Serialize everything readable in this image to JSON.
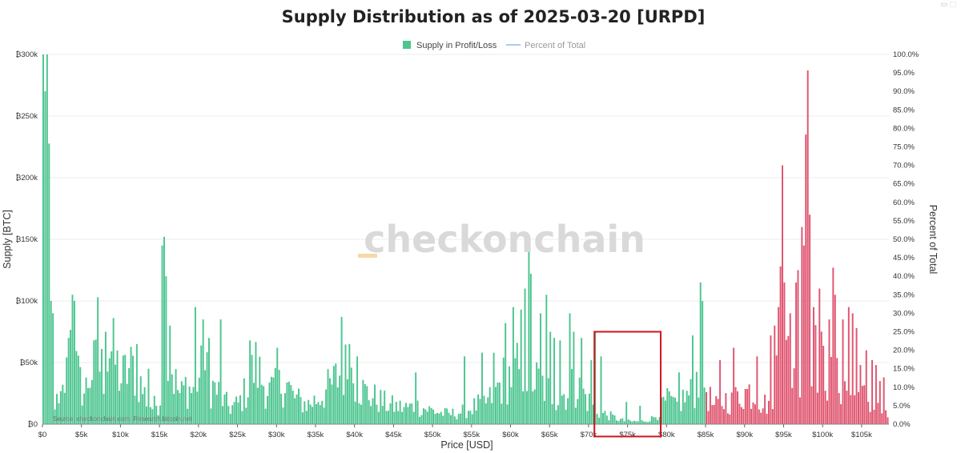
{
  "chart_data": {
    "type": "bar",
    "title": "Supply Distribution as of 2025-03-20 [URPD]",
    "xlabel": "Price [USD]",
    "ylabel": "Supply [BTC]",
    "y2label": "Percent of Total",
    "xlim": [
      0,
      108500
    ],
    "ylim": [
      0,
      300000
    ],
    "y2lim": [
      0,
      100
    ],
    "bin_width": 250,
    "x_ticks": [
      {
        "v": 0,
        "label": "$0"
      },
      {
        "v": 5000,
        "label": "$5k"
      },
      {
        "v": 10000,
        "label": "$10k"
      },
      {
        "v": 15000,
        "label": "$15k"
      },
      {
        "v": 20000,
        "label": "$20k"
      },
      {
        "v": 25000,
        "label": "$25k"
      },
      {
        "v": 30000,
        "label": "$30k"
      },
      {
        "v": 35000,
        "label": "$35k"
      },
      {
        "v": 40000,
        "label": "$40k"
      },
      {
        "v": 45000,
        "label": "$45k"
      },
      {
        "v": 50000,
        "label": "$50k"
      },
      {
        "v": 55000,
        "label": "$55k"
      },
      {
        "v": 60000,
        "label": "$60k"
      },
      {
        "v": 65000,
        "label": "$65k"
      },
      {
        "v": 70000,
        "label": "$70k"
      },
      {
        "v": 75000,
        "label": "$75k"
      },
      {
        "v": 80000,
        "label": "$80k"
      },
      {
        "v": 85000,
        "label": "$85k"
      },
      {
        "v": 90000,
        "label": "$90k"
      },
      {
        "v": 95000,
        "label": "$95k"
      },
      {
        "v": 100000,
        "label": "$100k"
      },
      {
        "v": 105000,
        "label": "$105k"
      }
    ],
    "y_ticks": [
      {
        "v": 0,
        "label": "₿0"
      },
      {
        "v": 50000,
        "label": "₿50k"
      },
      {
        "v": 100000,
        "label": "₿100k"
      },
      {
        "v": 150000,
        "label": "₿150k"
      },
      {
        "v": 200000,
        "label": "₿200k"
      },
      {
        "v": 250000,
        "label": "₿250k"
      },
      {
        "v": 300000,
        "label": "₿300k"
      }
    ],
    "y2_ticks": [
      "0.0%",
      "5.0%",
      "10.0%",
      "15.0%",
      "20.0%",
      "25.0%",
      "30.0%",
      "35.0%",
      "40.0%",
      "45.0%",
      "50.0%",
      "55.0%",
      "60.0%",
      "65.0%",
      "70.0%",
      "75.0%",
      "80.0%",
      "85.0%",
      "90.0%",
      "95.0%",
      "100.0%"
    ],
    "current_price": 84800,
    "series": [
      {
        "name": "Supply in Profit/Loss",
        "color_profit": "#4cc58f",
        "color_loss": "#e0546f"
      },
      {
        "name": "Percent of Total",
        "color": "#a9cdf0"
      }
    ],
    "profile": [
      [
        0,
        20000
      ],
      [
        300,
        300000
      ],
      [
        600,
        220000
      ],
      [
        900,
        95000
      ],
      [
        1300,
        25000
      ],
      [
        2000,
        15000
      ],
      [
        2600,
        30000
      ],
      [
        3300,
        55000
      ],
      [
        3700,
        100000
      ],
      [
        4200,
        50000
      ],
      [
        4800,
        35000
      ],
      [
        5300,
        28000
      ],
      [
        6000,
        45000
      ],
      [
        7000,
        55000
      ],
      [
        7800,
        45000
      ],
      [
        8500,
        70000
      ],
      [
        9300,
        55000
      ],
      [
        10000,
        40000
      ],
      [
        10800,
        48000
      ],
      [
        11700,
        50000
      ],
      [
        12500,
        35000
      ],
      [
        13300,
        22000
      ],
      [
        14000,
        15000
      ],
      [
        14800,
        20000
      ],
      [
        15500,
        35000
      ],
      [
        16200,
        60000
      ],
      [
        16800,
        40000
      ],
      [
        17600,
        25000
      ],
      [
        18300,
        35000
      ],
      [
        19000,
        30000
      ],
      [
        19800,
        40000
      ],
      [
        20600,
        50000
      ],
      [
        21500,
        35000
      ],
      [
        22300,
        30000
      ],
      [
        23200,
        20000
      ],
      [
        24000,
        15000
      ],
      [
        25000,
        18000
      ],
      [
        26000,
        30000
      ],
      [
        26700,
        45000
      ],
      [
        27300,
        52000
      ],
      [
        28000,
        40000
      ],
      [
        29000,
        30000
      ],
      [
        30000,
        32000
      ],
      [
        31000,
        40000
      ],
      [
        32000,
        25000
      ],
      [
        33000,
        20000
      ],
      [
        34000,
        18000
      ],
      [
        35000,
        22000
      ],
      [
        36000,
        28000
      ],
      [
        37000,
        35000
      ],
      [
        38000,
        45000
      ],
      [
        39000,
        50000
      ],
      [
        40000,
        40000
      ],
      [
        41000,
        30000
      ],
      [
        42000,
        25000
      ],
      [
        43000,
        22000
      ],
      [
        44000,
        18000
      ],
      [
        45000,
        16000
      ],
      [
        46000,
        15000
      ],
      [
        47000,
        15000
      ],
      [
        48000,
        16000
      ],
      [
        49000,
        14000
      ],
      [
        50000,
        12000
      ],
      [
        51000,
        10000
      ],
      [
        52000,
        9000
      ],
      [
        53000,
        10000
      ],
      [
        54000,
        12000
      ],
      [
        55000,
        15000
      ],
      [
        56000,
        18000
      ],
      [
        57000,
        20000
      ],
      [
        58000,
        30000
      ],
      [
        59000,
        40000
      ],
      [
        60000,
        45000
      ],
      [
        61000,
        48000
      ],
      [
        62000,
        45000
      ],
      [
        63000,
        40000
      ],
      [
        64000,
        35000
      ],
      [
        65000,
        28000
      ],
      [
        66000,
        25000
      ],
      [
        67000,
        28000
      ],
      [
        68000,
        35000
      ],
      [
        69000,
        30000
      ],
      [
        70000,
        20000
      ],
      [
        70700,
        13000
      ],
      [
        71500,
        10000
      ],
      [
        72500,
        8000
      ],
      [
        73500,
        5000
      ],
      [
        74500,
        3000
      ],
      [
        75500,
        2500
      ],
      [
        76500,
        2500
      ],
      [
        77300,
        3500
      ],
      [
        78000,
        5000
      ],
      [
        78700,
        9000
      ],
      [
        79500,
        18000
      ],
      [
        80300,
        22000
      ],
      [
        81000,
        15000
      ],
      [
        81800,
        22000
      ],
      [
        82500,
        25000
      ],
      [
        83200,
        28000
      ],
      [
        83800,
        40000
      ],
      [
        84400,
        55000
      ],
      [
        84800,
        35000
      ],
      [
        85300,
        25000
      ],
      [
        86000,
        15000
      ],
      [
        86800,
        18000
      ],
      [
        87500,
        22000
      ],
      [
        88300,
        20000
      ],
      [
        89000,
        25000
      ],
      [
        89800,
        28000
      ],
      [
        90500,
        30000
      ],
      [
        91300,
        25000
      ],
      [
        92000,
        20000
      ],
      [
        92800,
        18000
      ],
      [
        93500,
        30000
      ],
      [
        94100,
        55000
      ],
      [
        94700,
        75000
      ],
      [
        95300,
        60000
      ],
      [
        96000,
        50000
      ],
      [
        96800,
        55000
      ],
      [
        97300,
        65000
      ],
      [
        97800,
        90000
      ],
      [
        98300,
        75000
      ],
      [
        99000,
        60000
      ],
      [
        99700,
        55000
      ],
      [
        100300,
        48000
      ],
      [
        101000,
        40000
      ],
      [
        101800,
        38000
      ],
      [
        102500,
        35000
      ],
      [
        103300,
        28000
      ],
      [
        104000,
        25000
      ],
      [
        104800,
        28000
      ],
      [
        105500,
        22000
      ],
      [
        106300,
        18000
      ],
      [
        107000,
        14000
      ],
      [
        107700,
        10000
      ],
      [
        108300,
        6000
      ]
    ],
    "spikes": [
      [
        0,
        300000
      ],
      [
        250,
        270000
      ],
      [
        500,
        300000
      ],
      [
        750,
        215000
      ],
      [
        1000,
        100000
      ],
      [
        1250,
        90000
      ],
      [
        3250,
        70000
      ],
      [
        3750,
        105000
      ],
      [
        4000,
        100000
      ],
      [
        7000,
        103000
      ],
      [
        8000,
        75000
      ],
      [
        9000,
        68000
      ],
      [
        12000,
        65000
      ],
      [
        13500,
        45000
      ],
      [
        15250,
        145000
      ],
      [
        15500,
        152000
      ],
      [
        15750,
        120000
      ],
      [
        16250,
        80000
      ],
      [
        19500,
        95000
      ],
      [
        20500,
        85000
      ],
      [
        21250,
        70000
      ],
      [
        22750,
        85000
      ],
      [
        26500,
        68000
      ],
      [
        27250,
        62000
      ],
      [
        30000,
        62000
      ],
      [
        38250,
        87000
      ],
      [
        39250,
        65000
      ],
      [
        40250,
        55000
      ],
      [
        47750,
        42000
      ],
      [
        54000,
        55000
      ],
      [
        56250,
        58000
      ],
      [
        57750,
        58000
      ],
      [
        59250,
        82000
      ],
      [
        60250,
        95000
      ],
      [
        61250,
        93000
      ],
      [
        61750,
        110000
      ],
      [
        62250,
        140000
      ],
      [
        62500,
        122000
      ],
      [
        63750,
        90000
      ],
      [
        64500,
        105000
      ],
      [
        65000,
        75000
      ],
      [
        65500,
        70000
      ],
      [
        66250,
        68000
      ],
      [
        67500,
        90000
      ],
      [
        68000,
        75000
      ],
      [
        69000,
        70000
      ],
      [
        70250,
        52000
      ],
      [
        70750,
        75000
      ],
      [
        71500,
        55000
      ],
      [
        74750,
        18000
      ],
      [
        76500,
        15000
      ],
      [
        81500,
        42000
      ],
      [
        83250,
        72000
      ],
      [
        84250,
        115000
      ],
      [
        84500,
        100000
      ],
      [
        86750,
        52000
      ],
      [
        88500,
        62000
      ],
      [
        91500,
        55000
      ],
      [
        93250,
        72000
      ],
      [
        93750,
        80000
      ],
      [
        94250,
        95000
      ],
      [
        94500,
        128000
      ],
      [
        94750,
        210000
      ],
      [
        95000,
        115000
      ],
      [
        95750,
        90000
      ],
      [
        96500,
        115000
      ],
      [
        96750,
        125000
      ],
      [
        97250,
        160000
      ],
      [
        97500,
        145000
      ],
      [
        97750,
        235000
      ],
      [
        98000,
        287000
      ],
      [
        98250,
        170000
      ],
      [
        98750,
        95000
      ],
      [
        99500,
        110000
      ],
      [
        100750,
        85000
      ],
      [
        101250,
        127000
      ],
      [
        101500,
        105000
      ],
      [
        102500,
        85000
      ],
      [
        103250,
        95000
      ],
      [
        103750,
        90000
      ],
      [
        104250,
        78000
      ],
      [
        104750,
        48000
      ],
      [
        105500,
        60000
      ],
      [
        106250,
        52000
      ],
      [
        106750,
        48000
      ],
      [
        107250,
        35000
      ],
      [
        107750,
        38000
      ]
    ]
  },
  "source_text": "Source: checkonchain.com. Research.bitcoin.net",
  "watermark_text": "checkonchain",
  "highlight_box": {
    "x0": 70750,
    "x1": 79250,
    "y0": -10000,
    "y1": 75000,
    "color": "#d0141e"
  }
}
